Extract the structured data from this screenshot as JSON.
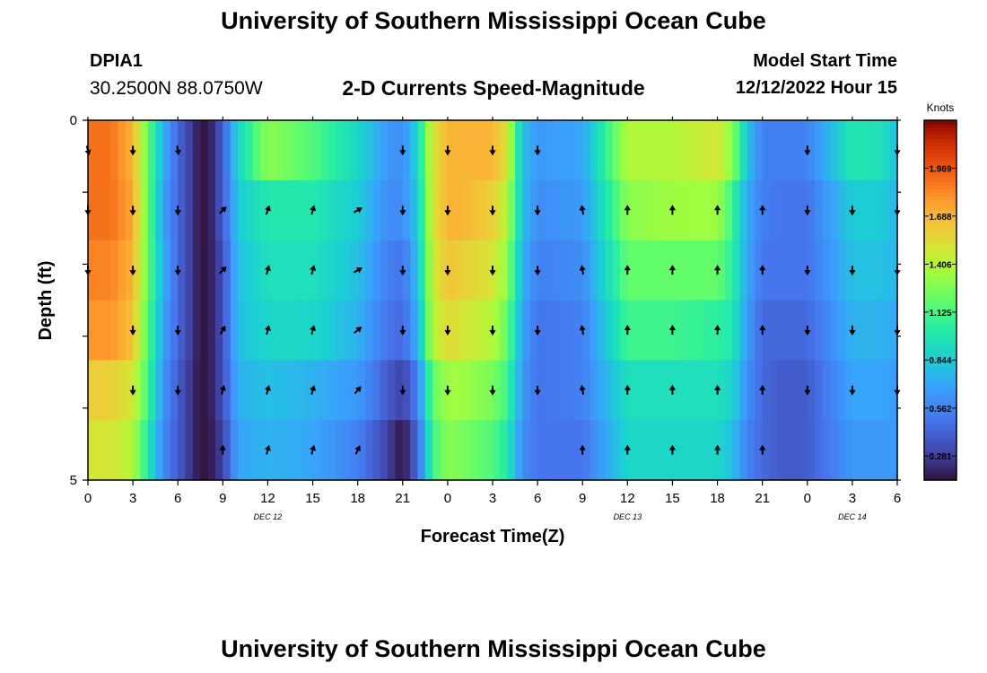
{
  "page": {
    "title": "University of Southern Mississippi Ocean Cube",
    "station_id": "DPIA1",
    "coordinates": "30.2500N  88.0750W",
    "subtitle": "2-D Currents Speed-Magnitude",
    "model_start_label": "Model Start Time",
    "model_start_value": "12/12/2022 Hour 15",
    "footer_title": "University of Southern Mississippi Ocean Cube"
  },
  "chart_data": {
    "type": "heatmap",
    "xlabel": "Forecast Time(Z)",
    "ylabel": "Depth (ft)",
    "ylim": [
      0,
      5
    ],
    "y_tick_labels": [
      "0",
      "5"
    ],
    "x_tick_labels": [
      "0",
      "3",
      "6",
      "9",
      "12",
      "15",
      "18",
      "21",
      "0",
      "3",
      "6",
      "9",
      "12",
      "15",
      "18",
      "21",
      "0",
      "3",
      "6"
    ],
    "date_labels": [
      {
        "text": "DEC 12",
        "at_tick": 4
      },
      {
        "text": "DEC 13",
        "at_tick": 12
      },
      {
        "text": "DEC 14",
        "at_tick": 17
      }
    ],
    "colorbar": {
      "title": "Knots",
      "range": [
        0.14,
        2.25
      ],
      "ticks": [
        0.281,
        0.562,
        0.844,
        1.125,
        1.406,
        1.688,
        1.969
      ],
      "tick_labels": [
        "0.281",
        "0.562",
        "0.844",
        "1.125",
        "1.406",
        "1.688",
        "1.969"
      ]
    },
    "time_keys": [
      0,
      1.5,
      3,
      4,
      5,
      6,
      7.5,
      8,
      9,
      10,
      12,
      15,
      18,
      20,
      21,
      22,
      23,
      24,
      25,
      27,
      28,
      29,
      30,
      33,
      36,
      39,
      42,
      43,
      44,
      45,
      46,
      48,
      51,
      53,
      54
    ],
    "layer_speeds": [
      [
        1.9,
        1.9,
        1.7,
        1.2,
        0.75,
        0.45,
        0.15,
        0.15,
        0.4,
        0.9,
        1.3,
        1.15,
        0.9,
        0.65,
        0.6,
        0.9,
        1.5,
        1.7,
        1.7,
        1.7,
        1.5,
        0.8,
        0.65,
        0.7,
        1.4,
        1.4,
        1.5,
        1.3,
        0.8,
        0.55,
        0.55,
        0.55,
        1.0,
        0.95,
        0.8
      ],
      [
        1.9,
        1.9,
        1.75,
        1.2,
        0.7,
        0.45,
        0.15,
        0.15,
        0.4,
        0.85,
        1.0,
        1.0,
        0.85,
        0.6,
        0.6,
        0.85,
        1.5,
        1.7,
        1.7,
        1.6,
        1.4,
        0.8,
        0.6,
        0.65,
        1.3,
        1.35,
        1.35,
        1.1,
        0.7,
        0.55,
        0.5,
        0.5,
        0.85,
        0.85,
        0.75
      ],
      [
        1.85,
        1.85,
        1.7,
        1.2,
        0.75,
        0.45,
        0.15,
        0.15,
        0.35,
        0.8,
        0.95,
        0.95,
        0.8,
        0.55,
        0.5,
        0.8,
        1.45,
        1.65,
        1.6,
        1.5,
        1.3,
        0.75,
        0.55,
        0.6,
        1.2,
        1.2,
        1.2,
        1.05,
        0.7,
        0.5,
        0.5,
        0.5,
        0.8,
        0.8,
        0.75
      ],
      [
        1.8,
        1.8,
        1.65,
        1.15,
        0.7,
        0.45,
        0.15,
        0.15,
        0.35,
        0.8,
        0.9,
        0.9,
        0.75,
        0.5,
        0.45,
        0.75,
        1.4,
        1.55,
        1.5,
        1.4,
        1.2,
        0.7,
        0.5,
        0.55,
        1.1,
        1.1,
        1.05,
        1.0,
        0.65,
        0.45,
        0.45,
        0.45,
        0.75,
        0.75,
        0.7
      ],
      [
        1.6,
        1.6,
        1.5,
        1.1,
        0.65,
        0.4,
        0.15,
        0.15,
        0.35,
        0.75,
        0.8,
        0.75,
        0.65,
        0.4,
        0.3,
        0.55,
        1.2,
        1.35,
        1.35,
        1.25,
        1.1,
        0.65,
        0.5,
        0.55,
        0.95,
        0.95,
        0.95,
        0.9,
        0.6,
        0.45,
        0.4,
        0.4,
        0.7,
        0.7,
        0.65
      ],
      [
        1.5,
        1.5,
        1.4,
        1.0,
        0.6,
        0.4,
        0.15,
        0.15,
        0.3,
        0.7,
        0.75,
        0.7,
        0.55,
        0.3,
        0.15,
        0.45,
        1.1,
        1.3,
        1.25,
        1.15,
        1.0,
        0.6,
        0.5,
        0.5,
        0.9,
        0.9,
        0.9,
        0.8,
        0.55,
        0.45,
        0.4,
        0.4,
        0.65,
        0.65,
        0.65
      ]
    ],
    "arrow_times": [
      0,
      3,
      6,
      9,
      12,
      15,
      18,
      21,
      24,
      27,
      30,
      33,
      36,
      39,
      42,
      45,
      48,
      51,
      54
    ],
    "arrow_rows": [
      0,
      1,
      2,
      3,
      4,
      5
    ],
    "arrow_angles_deg": [
      [
        165,
        180,
        170,
        null,
        null,
        null,
        null,
        180,
        180,
        180,
        180,
        null,
        null,
        null,
        null,
        null,
        180,
        null,
        180
      ],
      [
        180,
        180,
        180,
        45,
        20,
        15,
        60,
        180,
        180,
        180,
        180,
        350,
        0,
        0,
        0,
        0,
        180,
        180,
        180
      ],
      [
        180,
        180,
        180,
        45,
        15,
        15,
        60,
        180,
        180,
        180,
        180,
        350,
        0,
        0,
        0,
        0,
        180,
        180,
        180
      ],
      [
        null,
        180,
        180,
        30,
        15,
        15,
        50,
        180,
        180,
        180,
        180,
        350,
        0,
        0,
        0,
        0,
        180,
        180,
        180
      ],
      [
        null,
        180,
        180,
        15,
        15,
        15,
        40,
        180,
        180,
        180,
        180,
        350,
        0,
        0,
        0,
        0,
        180,
        180,
        180
      ],
      [
        null,
        null,
        null,
        0,
        15,
        15,
        25,
        null,
        null,
        null,
        null,
        0,
        0,
        0,
        0,
        0,
        null,
        null,
        null
      ]
    ]
  }
}
